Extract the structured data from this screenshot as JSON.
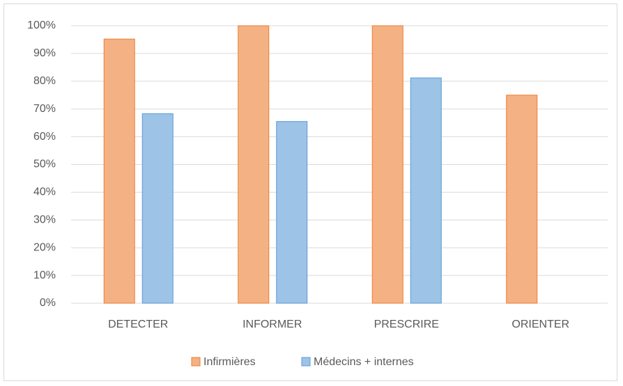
{
  "chart_data": {
    "type": "bar",
    "categories": [
      "DETECTER",
      "INFORMER",
      "PRESCRIRE",
      "ORIENTER"
    ],
    "series": [
      {
        "name": "Infirmières",
        "color": "#f4b183",
        "edgecolor": "#ed7d31",
        "values": [
          95.2,
          100,
          100,
          75
        ]
      },
      {
        "name": "Médecins + internes",
        "color": "#9dc3e6",
        "edgecolor": "#5b9bd5",
        "values": [
          68.3,
          65.5,
          81.2,
          null
        ]
      }
    ],
    "ylim": [
      0,
      100
    ],
    "yticks": [
      {
        "value": 0,
        "label": "0%"
      },
      {
        "value": 10,
        "label": "10%"
      },
      {
        "value": 20,
        "label": "20%"
      },
      {
        "value": 30,
        "label": "30%"
      },
      {
        "value": 40,
        "label": "40%"
      },
      {
        "value": 50,
        "label": "50%"
      },
      {
        "value": 60,
        "label": "60%"
      },
      {
        "value": 70,
        "label": "70%"
      },
      {
        "value": 80,
        "label": "80%"
      },
      {
        "value": 90,
        "label": "90%"
      },
      {
        "value": 100,
        "label": "100%"
      }
    ],
    "grid": true,
    "legend": "bottom"
  }
}
